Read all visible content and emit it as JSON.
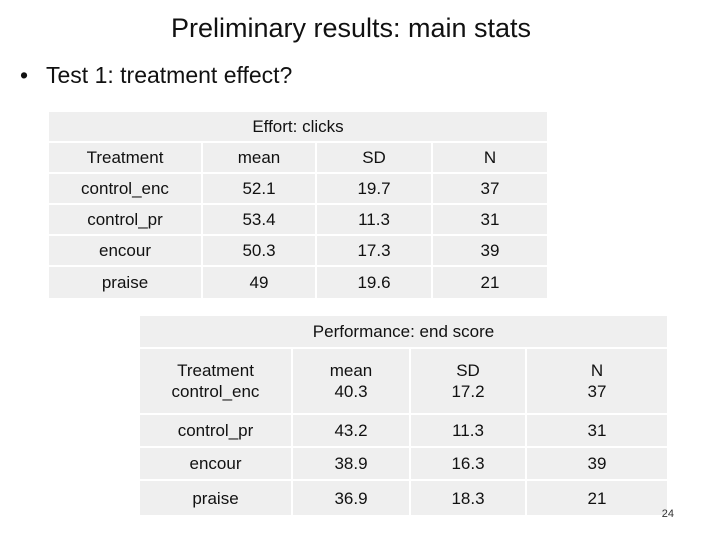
{
  "slide": {
    "title": "Preliminary results: main stats",
    "bullet": "Test 1: treatment effect?",
    "page_number": "24"
  },
  "table1": {
    "caption": "Effort: clicks",
    "columns": [
      "Treatment",
      "mean",
      "SD",
      "N"
    ],
    "rows": [
      [
        "control_enc",
        "52.1",
        "19.7",
        "37"
      ],
      [
        "control_pr",
        "53.4",
        "11.3",
        "31"
      ],
      [
        "encour",
        "50.3",
        "17.3",
        "39"
      ],
      [
        "praise",
        "49",
        "19.6",
        "21"
      ]
    ]
  },
  "table2": {
    "caption": "Performance: end score",
    "columns": [
      "Treatment",
      "mean",
      "SD",
      "N"
    ],
    "rows": [
      [
        "control_enc",
        "40.3",
        "17.2",
        "37"
      ],
      [
        "control_pr",
        "43.2",
        "11.3",
        "31"
      ],
      [
        "encour",
        "38.9",
        "16.3",
        "39"
      ],
      [
        "praise",
        "36.9",
        "18.3",
        "21"
      ]
    ]
  },
  "colors": {
    "cell_background": "#efefef",
    "text": "#111111",
    "page_background": "#ffffff"
  }
}
